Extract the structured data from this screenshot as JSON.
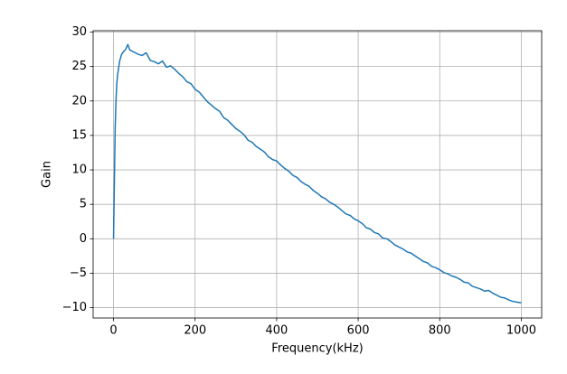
{
  "chart_data": {
    "type": "line",
    "xlabel": "Frequency(kHz)",
    "ylabel": "Gain",
    "x": [
      0,
      2,
      4,
      6,
      8,
      10,
      15,
      20,
      25,
      30,
      35,
      40,
      50,
      60,
      70,
      80,
      90,
      100,
      110,
      120,
      130,
      140,
      150,
      160,
      170,
      180,
      190,
      200,
      210,
      220,
      230,
      240,
      250,
      260,
      270,
      280,
      290,
      300,
      310,
      320,
      330,
      340,
      350,
      360,
      370,
      380,
      390,
      400,
      410,
      420,
      430,
      440,
      450,
      460,
      470,
      480,
      490,
      500,
      510,
      520,
      530,
      540,
      550,
      560,
      570,
      580,
      590,
      600,
      610,
      620,
      630,
      640,
      650,
      660,
      670,
      680,
      690,
      700,
      710,
      720,
      730,
      740,
      750,
      760,
      770,
      780,
      790,
      800,
      810,
      820,
      830,
      840,
      850,
      860,
      870,
      880,
      890,
      900,
      910,
      920,
      930,
      940,
      950,
      960,
      970,
      980,
      990,
      1000
    ],
    "series": [
      {
        "name": "Gain",
        "color": "#1f77b4",
        "values": [
          0,
          8,
          16,
          20,
          22.5,
          23.8,
          25.8,
          26.8,
          27.2,
          27.5,
          28.2,
          27.4,
          27.1,
          26.8,
          26.6,
          27.0,
          25.9,
          25.7,
          25.4,
          25.8,
          24.9,
          25.1,
          24.6,
          24.0,
          23.5,
          22.8,
          22.5,
          21.7,
          21.3,
          20.6,
          19.9,
          19.4,
          18.9,
          18.5,
          17.6,
          17.2,
          16.6,
          16.0,
          15.6,
          15.1,
          14.3,
          14.0,
          13.4,
          13.0,
          12.6,
          11.9,
          11.5,
          11.3,
          10.7,
          10.2,
          9.8,
          9.2,
          8.9,
          8.3,
          7.9,
          7.6,
          7.0,
          6.6,
          6.1,
          5.8,
          5.3,
          5.0,
          4.6,
          4.1,
          3.6,
          3.4,
          2.9,
          2.6,
          2.2,
          1.6,
          1.4,
          0.9,
          0.7,
          0.1,
          0.0,
          -0.4,
          -0.9,
          -1.2,
          -1.5,
          -1.9,
          -2.1,
          -2.5,
          -2.9,
          -3.3,
          -3.5,
          -4.0,
          -4.2,
          -4.5,
          -4.9,
          -5.1,
          -5.4,
          -5.6,
          -5.9,
          -6.3,
          -6.4,
          -6.9,
          -7.1,
          -7.3,
          -7.6,
          -7.5,
          -7.9,
          -8.2,
          -8.5,
          -8.6,
          -8.9,
          -9.1,
          -9.2,
          -9.3
        ]
      }
    ],
    "xlim": [
      -50,
      1050
    ],
    "xticks": [
      0,
      200,
      400,
      600,
      800,
      1000
    ],
    "ylim": [
      -11.5,
      30.2
    ],
    "yticks": [
      {
        "value": -10,
        "label": "−10"
      },
      {
        "value": -5,
        "label": "−5"
      },
      0,
      5,
      10,
      15,
      20,
      25,
      30
    ],
    "grid": true
  }
}
